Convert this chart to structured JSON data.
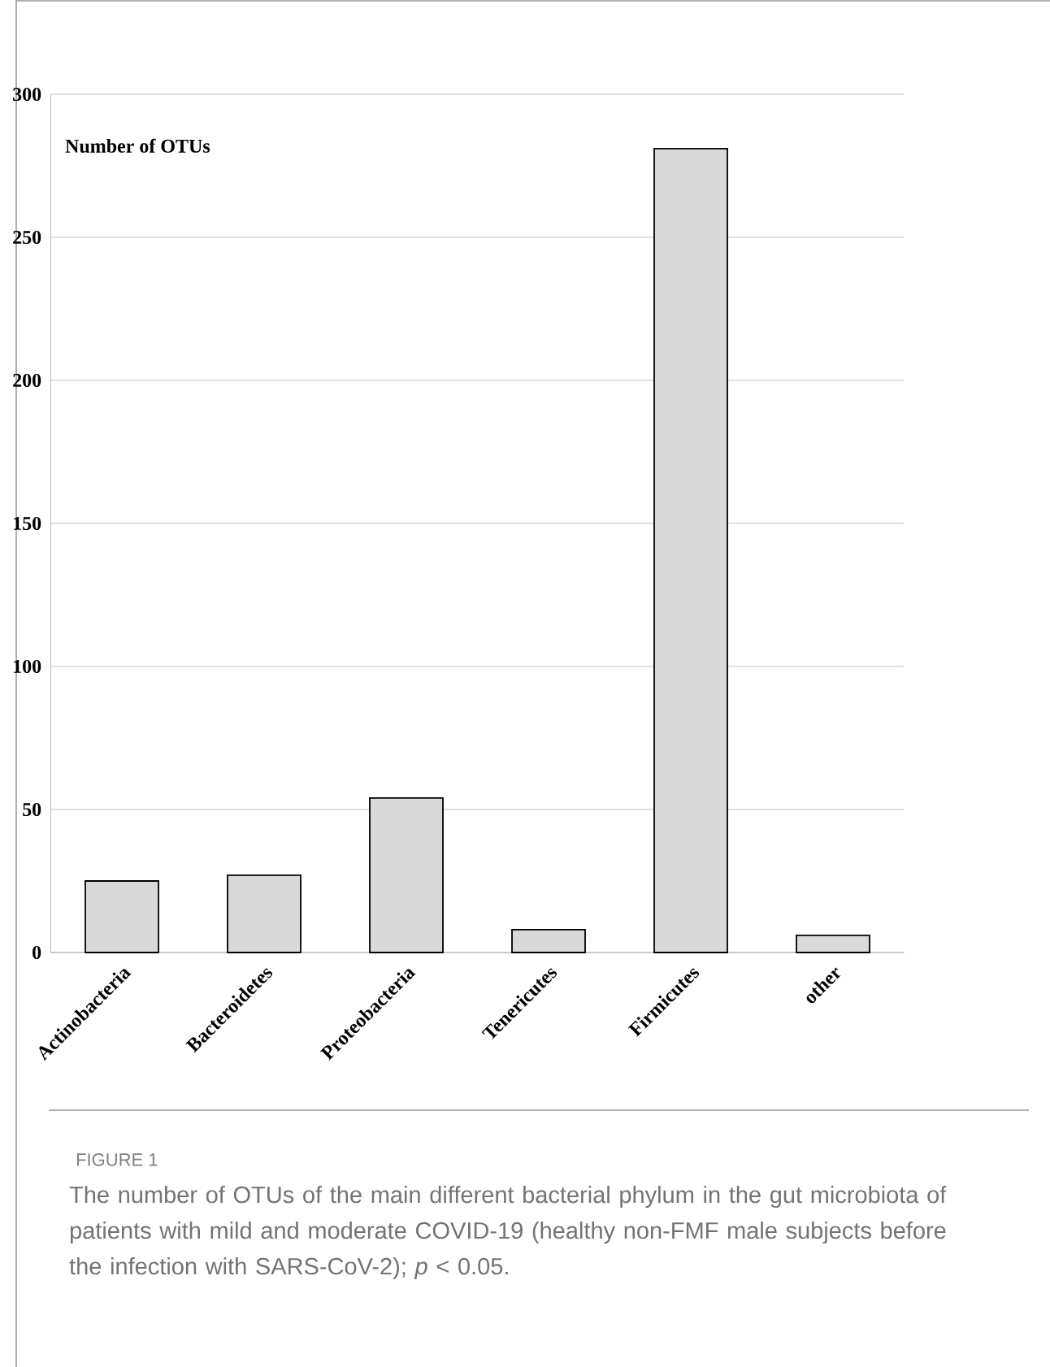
{
  "chart_data": {
    "type": "bar",
    "ylabel": "Number of OTUs",
    "categories": [
      "Actinobacteria",
      "Bacteroidetes",
      "Proteobacteria",
      "Tenericutes",
      "Firmicutes",
      "other"
    ],
    "values": [
      25,
      27,
      54,
      8,
      281,
      6
    ],
    "color": "#d9d9d9",
    "ylim": [
      0,
      300
    ],
    "yticks": [
      0,
      50,
      100,
      150,
      200,
      250,
      300
    ],
    "grid": "y",
    "annotations": [
      "FIGURE 1",
      "The number of OTUs of the main different bacterial phylum in the gut microbiota of patients with mild and moderate COVID-19 (healthy non-FMF male subjects before the infection with SARS-CoV-2); *p* < 0.05."
    ]
  }
}
